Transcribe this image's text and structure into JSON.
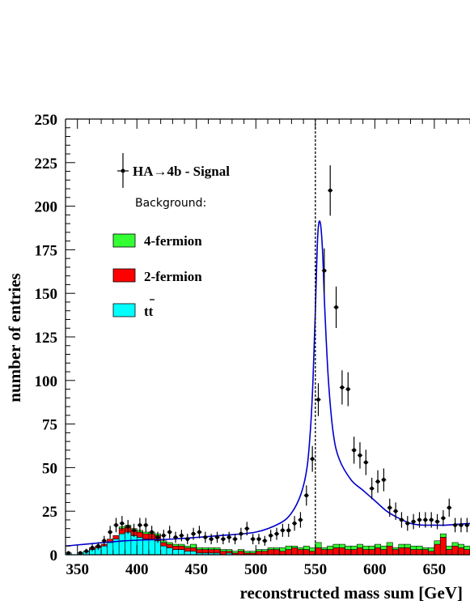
{
  "chart_data": {
    "type": "histogram",
    "xlabel": "reconstructed mass sum [GeV]",
    "ylabel": "number of entries",
    "xlim": [
      340,
      680
    ],
    "ylim": [
      0,
      250
    ],
    "x_ticks": [
      "350",
      "400",
      "450",
      "500",
      "550",
      "600",
      "650"
    ],
    "y_ticks": [
      "0",
      "25",
      "50",
      "75",
      "100",
      "125",
      "150",
      "175",
      "200",
      "225",
      "250"
    ],
    "bin_width": 5,
    "bin_low_edges": [
      340,
      345,
      350,
      355,
      360,
      365,
      370,
      375,
      380,
      385,
      390,
      395,
      400,
      405,
      410,
      415,
      420,
      425,
      430,
      435,
      440,
      445,
      450,
      455,
      460,
      465,
      470,
      475,
      480,
      485,
      490,
      495,
      500,
      505,
      510,
      515,
      520,
      525,
      530,
      535,
      540,
      545,
      550,
      555,
      560,
      565,
      570,
      575,
      580,
      585,
      590,
      595,
      600,
      605,
      610,
      615,
      620,
      625,
      630,
      635,
      640,
      645,
      650,
      655,
      660,
      665,
      670,
      675
    ],
    "vertical_line_x": 550,
    "colors": {
      "four_fermion": "#33ff33",
      "two_fermion": "#ff0000",
      "ttbar": "#00ffff",
      "fit": "#0000cc",
      "data": "#000000"
    },
    "legend": {
      "signal": "HA→4b - Signal",
      "background_title": "Background:",
      "items": [
        {
          "label": "4-fermion",
          "color": "#33ff33"
        },
        {
          "label": "2-fermion",
          "color": "#ff0000"
        },
        {
          "label": "tt",
          "color": "#00ffff"
        }
      ]
    },
    "series": [
      {
        "name": "tt",
        "values": [
          1,
          0,
          1,
          2,
          3,
          4,
          5,
          7,
          9,
          12,
          13,
          11,
          10,
          9,
          9,
          8,
          5,
          4,
          3,
          3,
          2,
          2,
          1,
          1,
          1,
          1,
          0,
          1,
          0,
          0,
          0,
          0,
          0,
          0,
          0,
          0,
          0,
          0,
          0,
          0,
          0,
          0,
          0,
          0,
          0,
          0,
          0,
          0,
          0,
          0,
          0,
          0,
          0,
          0,
          0,
          0,
          0,
          0,
          0,
          0,
          0,
          0,
          0,
          0,
          0,
          0,
          0,
          0
        ]
      },
      {
        "name": "2-fermion",
        "values": [
          0,
          0,
          0,
          0,
          1,
          1,
          1,
          2,
          2,
          3,
          3,
          3,
          3,
          3,
          3,
          3,
          2,
          2,
          2,
          2,
          2,
          2,
          2,
          2,
          2,
          2,
          2,
          1,
          1,
          2,
          1,
          1,
          2,
          2,
          3,
          3,
          2,
          3,
          4,
          3,
          3,
          2,
          4,
          3,
          3,
          4,
          4,
          3,
          3,
          4,
          3,
          3,
          4,
          3,
          5,
          3,
          4,
          4,
          3,
          3,
          3,
          2,
          6,
          10,
          3,
          5,
          4,
          3
        ]
      },
      {
        "name": "4-fermion",
        "values": [
          0,
          0,
          0,
          0,
          0,
          0,
          0,
          0,
          0,
          1,
          1,
          1,
          1,
          1,
          1,
          1,
          1,
          1,
          1,
          1,
          1,
          2,
          1,
          1,
          1,
          1,
          1,
          1,
          1,
          1,
          1,
          1,
          1,
          1,
          1,
          1,
          2,
          2,
          1,
          1,
          2,
          2,
          3,
          1,
          2,
          2,
          2,
          2,
          2,
          2,
          2,
          2,
          2,
          2,
          2,
          1,
          2,
          2,
          2,
          2,
          1,
          2,
          2,
          2,
          2,
          2,
          2,
          2
        ]
      }
    ],
    "data_points": {
      "name": "HA→4b - Signal",
      "x": [
        342.5,
        352.5,
        357.5,
        362.5,
        367.5,
        372.5,
        377.5,
        382.5,
        387.5,
        392.5,
        397.5,
        402.5,
        407.5,
        412.5,
        417.5,
        422.5,
        427.5,
        432.5,
        437.5,
        442.5,
        447.5,
        452.5,
        457.5,
        462.5,
        467.5,
        472.5,
        477.5,
        482.5,
        487.5,
        492.5,
        497.5,
        502.5,
        507.5,
        512.5,
        517.5,
        522.5,
        527.5,
        532.5,
        537.5,
        542.5,
        547.5,
        552.5,
        557.5,
        562.5,
        567.5,
        572.5,
        577.5,
        582.5,
        587.5,
        592.5,
        597.5,
        602.5,
        607.5,
        612.5,
        617.5,
        622.5,
        627.5,
        632.5,
        637.5,
        642.5,
        647.5,
        652.5,
        657.5,
        662.5,
        667.5,
        672.5,
        677.5
      ],
      "y": [
        1,
        1,
        2,
        4,
        5,
        8,
        13,
        17,
        18,
        16,
        14,
        17,
        17,
        13,
        10,
        11,
        13,
        10,
        11,
        9,
        12,
        13,
        10,
        9,
        10,
        9,
        10,
        9,
        12,
        15,
        9,
        9,
        8,
        11,
        12,
        14,
        14,
        18,
        20,
        34,
        55,
        89,
        163,
        209,
        142,
        96,
        95,
        60,
        57,
        53,
        38,
        42,
        43,
        27,
        25,
        20,
        18,
        19,
        20,
        20,
        20,
        19,
        21,
        27,
        17,
        17,
        17
      ]
    },
    "fit_curve_x": [
      340,
      390,
      430,
      470,
      500,
      520,
      530,
      538,
      543,
      546,
      548,
      550,
      552,
      554,
      556,
      558,
      561,
      565,
      570,
      580,
      590,
      600,
      610,
      620,
      630,
      640,
      650,
      660,
      680
    ],
    "fit_curve_y": [
      5,
      8,
      9,
      11,
      13,
      18,
      24,
      35,
      50,
      73,
      100,
      140,
      183,
      191,
      175,
      140,
      100,
      70,
      55,
      43,
      37,
      31,
      25,
      21,
      18,
      17,
      17,
      17,
      18
    ]
  }
}
